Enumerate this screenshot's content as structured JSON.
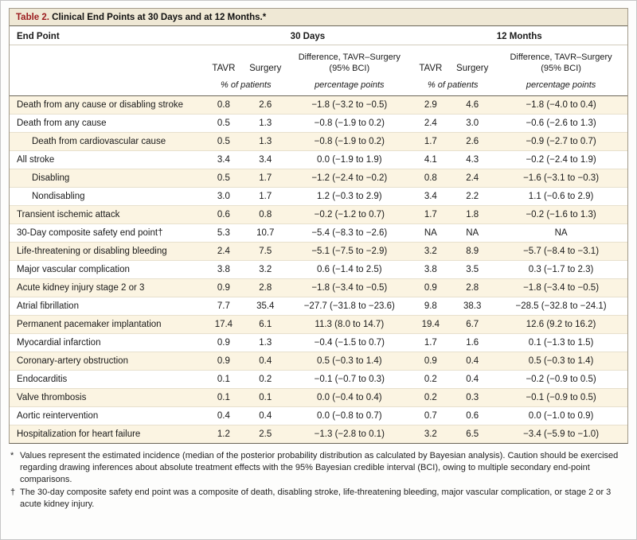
{
  "title": {
    "label": "Table 2.",
    "text": " Clinical End Points at 30 Days and at 12 Months.*"
  },
  "header": {
    "end_point": "End Point",
    "group_30": "30 Days",
    "group_12": "12 Months",
    "tavr": "TAVR",
    "surgery": "Surgery",
    "difference_line1": "Difference, TAVR–Surgery",
    "difference_line2": "(95% BCI)",
    "pct_patients": "% of patients",
    "pct_points": "percentage points"
  },
  "rows": [
    {
      "endpoint": "Death from any cause or disabling stroke",
      "indent": 0,
      "tavr30": "0.8",
      "surgery30": "2.6",
      "diff30": "−1.8 (−3.2 to −0.5)",
      "tavr12": "2.9",
      "surgery12": "4.6",
      "diff12": "−1.8 (−4.0 to 0.4)"
    },
    {
      "endpoint": "Death from any cause",
      "indent": 0,
      "tavr30": "0.5",
      "surgery30": "1.3",
      "diff30": "−0.8 (−1.9 to 0.2)",
      "tavr12": "2.4",
      "surgery12": "3.0",
      "diff12": "−0.6 (−2.6 to 1.3)"
    },
    {
      "endpoint": "Death from cardiovascular cause",
      "indent": 1,
      "tavr30": "0.5",
      "surgery30": "1.3",
      "diff30": "−0.8 (−1.9 to 0.2)",
      "tavr12": "1.7",
      "surgery12": "2.6",
      "diff12": "−0.9 (−2.7 to 0.7)"
    },
    {
      "endpoint": "All stroke",
      "indent": 0,
      "tavr30": "3.4",
      "surgery30": "3.4",
      "diff30": "0.0 (−1.9 to 1.9)",
      "tavr12": "4.1",
      "surgery12": "4.3",
      "diff12": "−0.2 (−2.4 to 1.9)"
    },
    {
      "endpoint": "Disabling",
      "indent": 1,
      "tavr30": "0.5",
      "surgery30": "1.7",
      "diff30": "−1.2 (−2.4 to −0.2)",
      "tavr12": "0.8",
      "surgery12": "2.4",
      "diff12": "−1.6 (−3.1 to −0.3)"
    },
    {
      "endpoint": "Nondisabling",
      "indent": 1,
      "tavr30": "3.0",
      "surgery30": "1.7",
      "diff30": "1.2 (−0.3 to 2.9)",
      "tavr12": "3.4",
      "surgery12": "2.2",
      "diff12": "1.1 (−0.6 to 2.9)"
    },
    {
      "endpoint": "Transient ischemic attack",
      "indent": 0,
      "tavr30": "0.6",
      "surgery30": "0.8",
      "diff30": "−0.2 (−1.2 to 0.7)",
      "tavr12": "1.7",
      "surgery12": "1.8",
      "diff12": "−0.2 (−1.6 to 1.3)"
    },
    {
      "endpoint": "30-Day composite safety end point†",
      "indent": 0,
      "tavr30": "5.3",
      "surgery30": "10.7",
      "diff30": "−5.4 (−8.3 to −2.6)",
      "tavr12": "NA",
      "surgery12": "NA",
      "diff12": "NA"
    },
    {
      "endpoint": "Life-threatening or disabling bleeding",
      "indent": 0,
      "tavr30": "2.4",
      "surgery30": "7.5",
      "diff30": "−5.1 (−7.5 to −2.9)",
      "tavr12": "3.2",
      "surgery12": "8.9",
      "diff12": "−5.7 (−8.4 to −3.1)"
    },
    {
      "endpoint": "Major vascular complication",
      "indent": 0,
      "tavr30": "3.8",
      "surgery30": "3.2",
      "diff30": "0.6 (−1.4 to 2.5)",
      "tavr12": "3.8",
      "surgery12": "3.5",
      "diff12": "0.3 (−1.7 to 2.3)"
    },
    {
      "endpoint": "Acute kidney injury stage 2 or 3",
      "indent": 0,
      "tavr30": "0.9",
      "surgery30": "2.8",
      "diff30": "−1.8 (−3.4 to −0.5)",
      "tavr12": "0.9",
      "surgery12": "2.8",
      "diff12": "−1.8 (−3.4 to −0.5)"
    },
    {
      "endpoint": "Atrial fibrillation",
      "indent": 0,
      "tavr30": "7.7",
      "surgery30": "35.4",
      "diff30": "−27.7 (−31.8 to −23.6)",
      "tavr12": "9.8",
      "surgery12": "38.3",
      "diff12": "−28.5 (−32.8 to −24.1)"
    },
    {
      "endpoint": "Permanent pacemaker implantation",
      "indent": 0,
      "tavr30": "17.4",
      "surgery30": "6.1",
      "diff30": "11.3 (8.0 to 14.7)",
      "tavr12": "19.4",
      "surgery12": "6.7",
      "diff12": "12.6 (9.2 to 16.2)"
    },
    {
      "endpoint": "Myocardial infarction",
      "indent": 0,
      "tavr30": "0.9",
      "surgery30": "1.3",
      "diff30": "−0.4 (−1.5 to 0.7)",
      "tavr12": "1.7",
      "surgery12": "1.6",
      "diff12": "0.1 (−1.3 to 1.5)"
    },
    {
      "endpoint": "Coronary-artery obstruction",
      "indent": 0,
      "tavr30": "0.9",
      "surgery30": "0.4",
      "diff30": "0.5 (−0.3 to 1.4)",
      "tavr12": "0.9",
      "surgery12": "0.4",
      "diff12": "0.5 (−0.3 to 1.4)"
    },
    {
      "endpoint": "Endocarditis",
      "indent": 0,
      "tavr30": "0.1",
      "surgery30": "0.2",
      "diff30": "−0.1 (−0.7 to 0.3)",
      "tavr12": "0.2",
      "surgery12": "0.4",
      "diff12": "−0.2 (−0.9 to 0.5)"
    },
    {
      "endpoint": "Valve thrombosis",
      "indent": 0,
      "tavr30": "0.1",
      "surgery30": "0.1",
      "diff30": "0.0 (−0.4 to 0.4)",
      "tavr12": "0.2",
      "surgery12": "0.3",
      "diff12": "−0.1 (−0.9 to 0.5)"
    },
    {
      "endpoint": "Aortic reintervention",
      "indent": 0,
      "tavr30": "0.4",
      "surgery30": "0.4",
      "diff30": "0.0 (−0.8 to 0.7)",
      "tavr12": "0.7",
      "surgery12": "0.6",
      "diff12": "0.0 (−1.0 to 0.9)"
    },
    {
      "endpoint": "Hospitalization for heart failure",
      "indent": 0,
      "tavr30": "1.2",
      "surgery30": "2.5",
      "diff30": "−1.3 (−2.8 to 0.1)",
      "tavr12": "3.2",
      "surgery12": "6.5",
      "diff12": "−3.4 (−5.9 to −1.0)"
    }
  ],
  "footnotes": [
    {
      "marker": "*",
      "text": "Values represent the estimated incidence (median of the posterior probability distribution as calculated by Bayesian analysis). Caution should be exercised regarding drawing inferences about absolute treatment effects with the 95% Bayesian credible interval (BCI), owing to multiple secondary end-point comparisons."
    },
    {
      "marker": "†",
      "text": "The 30-day composite safety end point was a composite of death, disabling stroke, life-threatening bleeding, major vascular complication, or stage 2 or 3 acute kidney injury."
    }
  ],
  "colors": {
    "title_bar_bg": "#efe8d5",
    "accent_red": "#9b1b1e",
    "row_cream": "#fbf4e2",
    "rule_mid": "#a29a8a",
    "rule_dark": "#6b6557"
  }
}
